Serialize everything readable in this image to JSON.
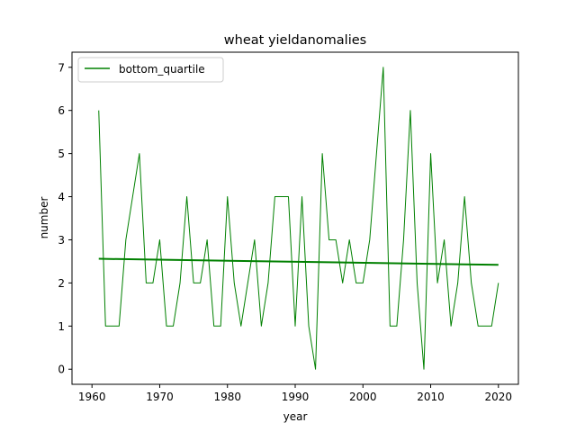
{
  "chart_data": {
    "type": "line",
    "title": "wheat yieldanomalies",
    "xlabel": "year",
    "ylabel": "number",
    "xlim": [
      1957.05,
      2022.95
    ],
    "ylim": [
      -0.35,
      7.35
    ],
    "xticks": [
      1960,
      1970,
      1980,
      1990,
      2000,
      2010,
      2020
    ],
    "yticks": [
      0,
      1,
      2,
      3,
      4,
      5,
      6,
      7
    ],
    "grid": false,
    "legend_position": "top-left",
    "series": [
      {
        "name": "bottom_quartile",
        "color": "#008000",
        "x": [
          1961,
          1962,
          1963,
          1964,
          1965,
          1966,
          1967,
          1968,
          1969,
          1970,
          1971,
          1972,
          1973,
          1974,
          1975,
          1976,
          1977,
          1978,
          1979,
          1980,
          1981,
          1982,
          1983,
          1984,
          1985,
          1986,
          1987,
          1988,
          1989,
          1990,
          1991,
          1992,
          1993,
          1994,
          1995,
          1996,
          1997,
          1998,
          1999,
          2000,
          2001,
          2002,
          2003,
          2004,
          2005,
          2006,
          2007,
          2008,
          2009,
          2010,
          2011,
          2012,
          2013,
          2014,
          2015,
          2016,
          2017,
          2018,
          2019,
          2020
        ],
        "y": [
          6,
          1,
          1,
          1,
          3,
          4,
          5,
          2,
          2,
          3,
          1,
          1,
          2,
          4,
          2,
          2,
          3,
          1,
          1,
          4,
          2,
          1,
          2,
          3,
          1,
          2,
          4,
          4,
          4,
          1,
          4,
          1,
          0,
          5,
          3,
          3,
          2,
          3,
          2,
          2,
          3,
          5,
          7,
          1,
          1,
          3,
          6,
          2,
          0,
          5,
          2,
          3,
          1,
          2,
          4,
          2,
          1,
          1,
          1,
          2
        ]
      }
    ],
    "trend": {
      "color": "#008000",
      "x": [
        1961,
        2020
      ],
      "y": [
        2.56,
        2.42
      ]
    }
  }
}
